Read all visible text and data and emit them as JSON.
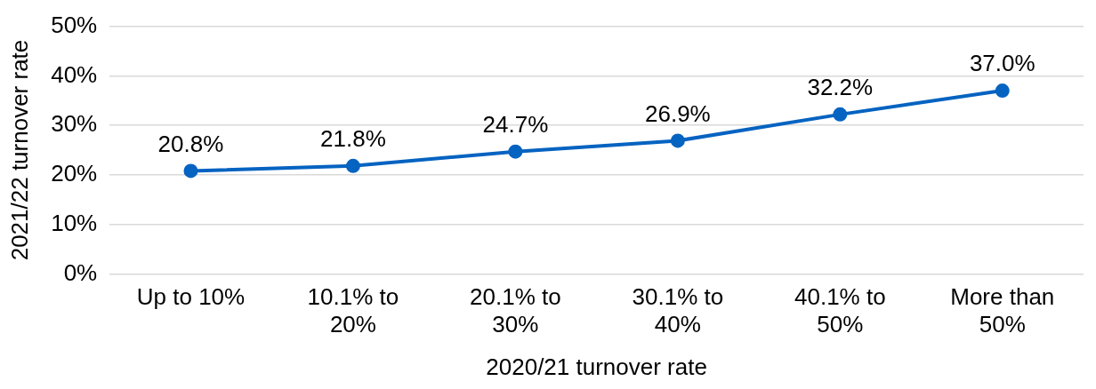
{
  "chart_data": {
    "type": "line",
    "xlabel": "2020/21 turnover rate",
    "ylabel": "2021/22 turnover rate",
    "categories": [
      "Up to 10%",
      "10.1% to 20%",
      "20.1% to 30%",
      "30.1% to 40%",
      "40.1% to 50%",
      "More than 50%"
    ],
    "series": [
      {
        "color": "#0563c1",
        "values": [
          20.8,
          21.8,
          24.7,
          26.9,
          32.2,
          37.0
        ],
        "value_labels": [
          "20.8%",
          "21.8%",
          "24.7%",
          "26.9%",
          "32.2%",
          "37.0%"
        ]
      }
    ],
    "ylim": [
      0,
      50
    ],
    "yticks": [
      {
        "value": 0,
        "label": "0%"
      },
      {
        "value": 10,
        "label": "10%"
      },
      {
        "value": 20,
        "label": "20%"
      },
      {
        "value": 30,
        "label": "30%"
      },
      {
        "value": 40,
        "label": "40%"
      },
      {
        "value": 50,
        "label": "50%"
      }
    ],
    "grid": "y",
    "legend": false,
    "marker": "circle",
    "line_style": "solid"
  }
}
